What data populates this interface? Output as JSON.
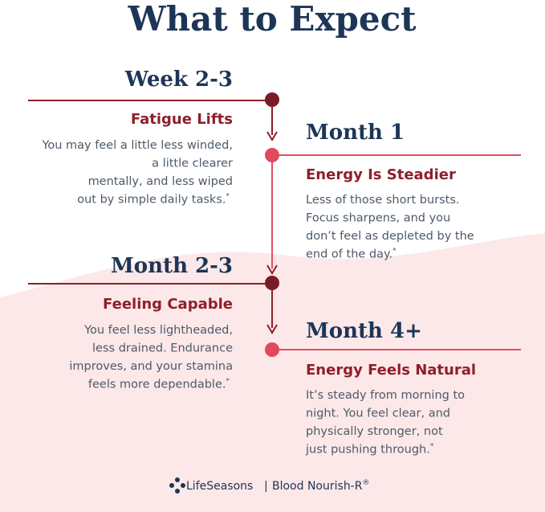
{
  "title": "What to Expect",
  "stages": [
    {
      "time": "Week 2-3",
      "heading": "Fatigue Lifts",
      "lines": [
        "You may feel a little less winded,",
        "a little clearer",
        "mentally, and less wiped",
        "out by simple daily tasks."
      ],
      "note": "*"
    },
    {
      "time": "Month 1",
      "heading": "Energy Is Steadier",
      "lines": [
        "Less of those short bursts.",
        "Focus sharpens, and you",
        "don’t feel as depleted by the",
        "end of the day."
      ],
      "note": "*"
    },
    {
      "time": "Month 2-3",
      "heading": "Feeling Capable",
      "lines": [
        "You feel less lightheaded,",
        "less drained. Endurance",
        "improves, and your stamina",
        "feels more dependable."
      ],
      "note": "*"
    },
    {
      "time": "Month 4+",
      "heading": "Energy Feels Natural",
      "lines": [
        "It’s steady from morning to",
        "night. You feel clear, and",
        "physically stronger, not",
        "just pushing through."
      ],
      "note": "*"
    }
  ],
  "footer": {
    "brand": "LifeSeasons",
    "separator": "|",
    "product": "Blood Nourish-R",
    "mark": "®"
  }
}
